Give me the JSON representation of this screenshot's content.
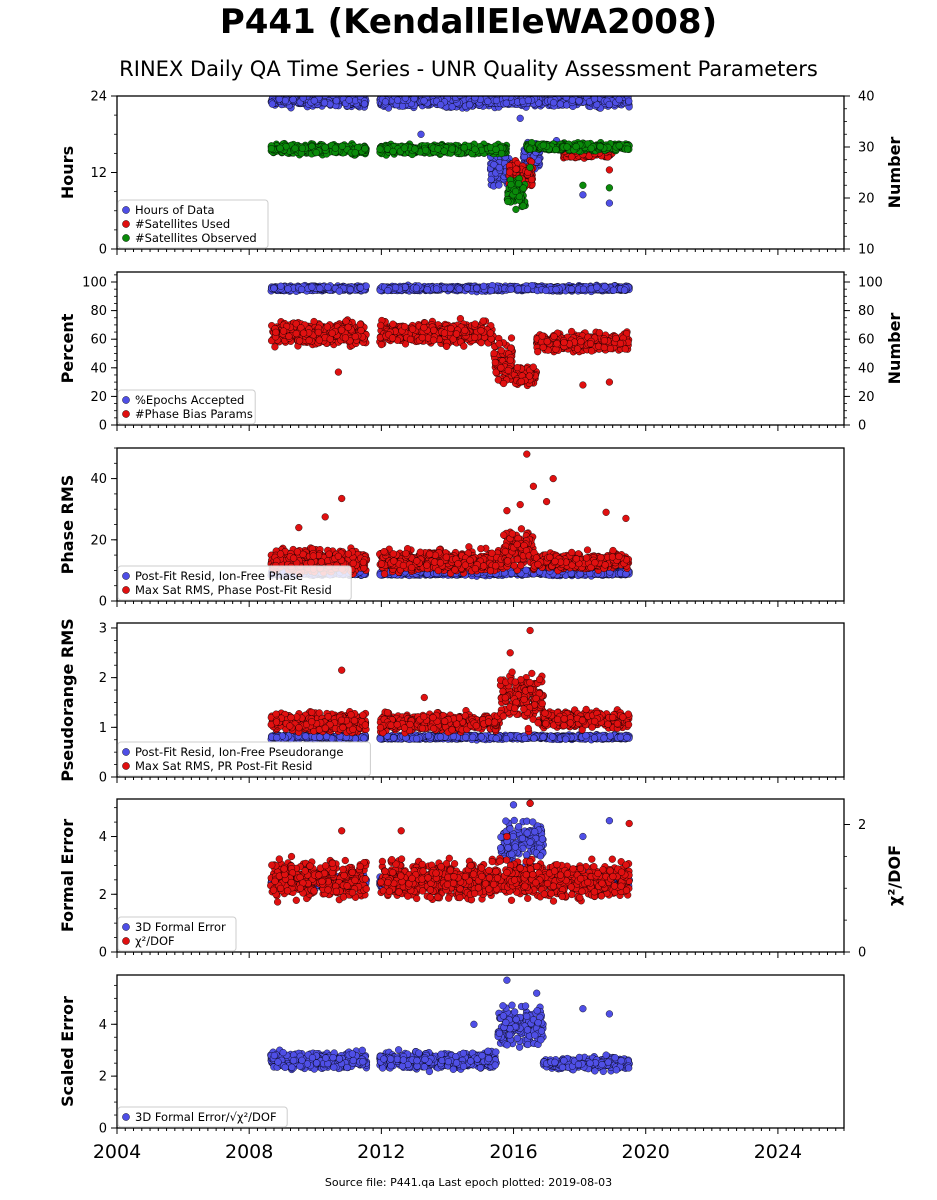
{
  "title": "P441 (KendallEleWA2008)",
  "subtitle": "RINEX Daily QA Time Series - UNR Quality Assessment Parameters",
  "footer": "Source file: P441.qa Last epoch plotted: 2019-08-03",
  "colors": {
    "blue": "#4f4fe6",
    "red": "#e01010",
    "green": "#0a8a0a",
    "edge": "#000000"
  },
  "chart_data": [
    {
      "type": "scatter",
      "ylabel": "Hours",
      "ylabel_right": "Number",
      "ylim": [
        0,
        24
      ],
      "yticks": [
        0,
        12,
        24
      ],
      "ylim_right": [
        10,
        40
      ],
      "yticks_right": [
        10,
        20,
        30,
        40
      ],
      "xlim": [
        2004,
        2026
      ],
      "legend_location": "lower-left",
      "series": [
        {
          "name": "Hours of Data",
          "color": "blue",
          "axis": "left",
          "segments": [
            {
              "x": [
                2008.65,
                2019.5
              ],
              "base": 23.3,
              "spread": 1.4
            },
            {
              "x": [
                2015.3,
                2015.95
              ],
              "base": 12.5,
              "spread": 3.5
            },
            {
              "x": [
                2016.3,
                2016.8
              ],
              "base": 14.5,
              "spread": 3
            }
          ],
          "outliers": [
            [
              2013.2,
              18.0
            ],
            [
              2018.1,
              8.5
            ],
            [
              2018.9,
              7.2
            ],
            [
              2017.3,
              17.0
            ],
            [
              2016.2,
              20.5
            ]
          ]
        },
        {
          "name": "#Satellites Used",
          "color": "red",
          "axis": "right",
          "segments": [
            {
              "x": [
                2015.85,
                2016.6
              ],
              "base": 24.5,
              "spread": 3.5
            },
            {
              "x": [
                2017.5,
                2019.0
              ],
              "base": 29.0,
              "spread": 1.5
            }
          ],
          "outliers": [
            [
              2009.9,
              30.5
            ],
            [
              2018.1,
              28.5
            ],
            [
              2018.9,
              25.5
            ],
            [
              2018.9,
              29.5
            ]
          ]
        },
        {
          "name": "#Satellites Observed",
          "color": "green",
          "axis": "right",
          "segments": [
            {
              "x": [
                2008.65,
                2015.8
              ],
              "base": 29.5,
              "spread": 1.3
            },
            {
              "x": [
                2015.8,
                2016.4
              ],
              "base": 21.0,
              "spread": 4.0
            },
            {
              "x": [
                2016.4,
                2019.5
              ],
              "base": 30.0,
              "spread": 1.0
            }
          ],
          "outliers": [
            [
              2018.1,
              22.5
            ],
            [
              2018.9,
              22.0
            ],
            [
              2016.5,
              26.0
            ]
          ]
        }
      ]
    },
    {
      "type": "scatter",
      "ylabel": "Percent",
      "ylabel_right": "Number",
      "ylim": [
        0,
        107
      ],
      "yticks": [
        0,
        20,
        40,
        60,
        80,
        100
      ],
      "ylim_right": [
        0,
        107
      ],
      "yticks_right": [
        0,
        20,
        40,
        60,
        80,
        100
      ],
      "xlim": [
        2004,
        2026
      ],
      "legend_location": "lower-left",
      "series": [
        {
          "name": "%Epochs Accepted",
          "color": "blue",
          "axis": "left",
          "segments": [
            {
              "x": [
                2008.65,
                2019.5
              ],
              "base": 95.5,
              "spread": 2.5
            }
          ],
          "outliers": []
        },
        {
          "name": "#Phase Bias Params",
          "color": "red",
          "axis": "right",
          "segments": [
            {
              "x": [
                2008.65,
                2015.4
              ],
              "base": 64,
              "spread": 11
            },
            {
              "x": [
                2015.4,
                2016.0
              ],
              "base": 45,
              "spread": 20
            },
            {
              "x": [
                2016.0,
                2016.7
              ],
              "base": 35,
              "spread": 10
            },
            {
              "x": [
                2016.7,
                2019.5
              ],
              "base": 58,
              "spread": 9
            }
          ],
          "outliers": [
            [
              2010.7,
              37
            ],
            [
              2018.1,
              28
            ],
            [
              2018.9,
              30
            ],
            [
              2015.7,
              29
            ]
          ]
        }
      ]
    },
    {
      "type": "scatter",
      "ylabel": "Phase RMS",
      "ylim": [
        0,
        50
      ],
      "yticks": [
        0,
        20,
        40
      ],
      "xlim": [
        2004,
        2026
      ],
      "legend_location": "lower-left",
      "series": [
        {
          "name": "Post-Fit Resid, Ion-Free Phase",
          "color": "blue",
          "axis": "left",
          "segments": [
            {
              "x": [
                2008.65,
                2019.5
              ],
              "base": 9.2,
              "spread": 1.2
            }
          ],
          "outliers": []
        },
        {
          "name": "Max Sat RMS, Phase Post-Fit Resid",
          "color": "red",
          "axis": "left",
          "segments": [
            {
              "x": [
                2008.65,
                2015.7
              ],
              "base": 13,
              "spread": 5
            },
            {
              "x": [
                2015.7,
                2016.6
              ],
              "base": 17,
              "spread": 8
            },
            {
              "x": [
                2016.6,
                2019.5
              ],
              "base": 13,
              "spread": 4
            }
          ],
          "outliers": [
            [
              2016.4,
              48
            ],
            [
              2010.8,
              33.5
            ],
            [
              2017.2,
              40
            ],
            [
              2016.6,
              37.5
            ],
            [
              2016.2,
              31.5
            ],
            [
              2017.0,
              32.5
            ],
            [
              2009.5,
              24
            ],
            [
              2010.3,
              27.5
            ],
            [
              2019.4,
              27
            ],
            [
              2018.8,
              29
            ],
            [
              2015.8,
              29.5
            ]
          ]
        }
      ]
    },
    {
      "type": "scatter",
      "ylabel": "Pseudorange RMS",
      "ylim": [
        0,
        3.1
      ],
      "yticks": [
        0,
        1,
        2,
        3
      ],
      "xlim": [
        2004,
        2026
      ],
      "legend_location": "lower-left",
      "series": [
        {
          "name": "Post-Fit Resid, Ion-Free Pseudorange",
          "color": "blue",
          "axis": "left",
          "segments": [
            {
              "x": [
                2008.65,
                2019.5
              ],
              "base": 0.8,
              "spread": 0.06
            }
          ],
          "outliers": []
        },
        {
          "name": "Max Sat RMS, PR Post-Fit Resid",
          "color": "red",
          "axis": "left",
          "segments": [
            {
              "x": [
                2008.65,
                2015.6
              ],
              "base": 1.1,
              "spread": 0.25
            },
            {
              "x": [
                2015.6,
                2016.9
              ],
              "base": 1.6,
              "spread": 0.8
            },
            {
              "x": [
                2016.9,
                2019.5
              ],
              "base": 1.15,
              "spread": 0.25
            }
          ],
          "outliers": [
            [
              2010.8,
              2.15
            ],
            [
              2016.5,
              2.95
            ],
            [
              2015.9,
              2.5
            ],
            [
              2013.3,
              1.6
            ]
          ]
        }
      ]
    },
    {
      "type": "scatter",
      "ylabel": "Formal Error",
      "ylabel_right": "χ²/DOF",
      "ylim": [
        0,
        5.3
      ],
      "yticks": [
        0,
        2,
        4
      ],
      "ylim_right": [
        0,
        2.4
      ],
      "yticks_right": [
        0,
        2
      ],
      "xlim": [
        2004,
        2026
      ],
      "legend_location": "lower-left",
      "series": [
        {
          "name": "3D Formal Error",
          "color": "blue",
          "axis": "left",
          "segments": [
            {
              "x": [
                2008.65,
                2015.6
              ],
              "base": 2.4,
              "spread": 0.3
            },
            {
              "x": [
                2015.6,
                2016.9
              ],
              "base": 3.8,
              "spread": 1.0
            },
            {
              "x": [
                2016.9,
                2019.5
              ],
              "base": 2.5,
              "spread": 0.4
            }
          ],
          "outliers": [
            [
              2016.0,
              5.1
            ],
            [
              2018.1,
              4.0
            ],
            [
              2018.9,
              4.55
            ],
            [
              2016.5,
              5.15
            ]
          ]
        },
        {
          "name": "χ²/DOF",
          "color": "red",
          "axis": "left",
          "segments": [
            {
              "x": [
                2008.65,
                2019.5
              ],
              "base": 2.5,
              "spread": 0.9
            }
          ],
          "outliers": [
            [
              2010.8,
              4.2
            ],
            [
              2012.6,
              4.2
            ],
            [
              2016.5,
              5.15
            ],
            [
              2019.5,
              4.45
            ],
            [
              2015.8,
              4.0
            ]
          ]
        }
      ]
    },
    {
      "type": "scatter",
      "ylabel": "Scaled Error",
      "ylim": [
        0,
        5.9
      ],
      "yticks": [
        0,
        2,
        4
      ],
      "xlim": [
        2004,
        2026
      ],
      "xticks": [
        2004,
        2008,
        2012,
        2016,
        2020,
        2024
      ],
      "legend_location": "lower-left",
      "series": [
        {
          "name": "3D Formal Error/√χ²/DOF",
          "color": "blue",
          "axis": "left",
          "segments": [
            {
              "x": [
                2008.65,
                2015.5
              ],
              "base": 2.6,
              "spread": 0.45
            },
            {
              "x": [
                2015.5,
                2016.9
              ],
              "base": 3.9,
              "spread": 1.1
            },
            {
              "x": [
                2016.9,
                2019.5
              ],
              "base": 2.5,
              "spread": 0.35
            }
          ],
          "outliers": [
            [
              2015.8,
              5.7
            ],
            [
              2018.1,
              4.6
            ],
            [
              2018.9,
              4.4
            ],
            [
              2014.8,
              4.0
            ],
            [
              2016.7,
              5.2
            ]
          ]
        }
      ]
    }
  ]
}
